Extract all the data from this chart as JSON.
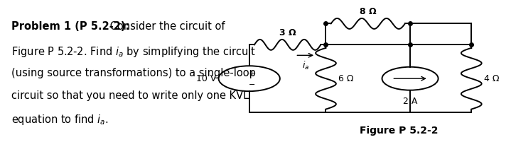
{
  "bg_color": "#ffffff",
  "fig_width": 7.0,
  "fig_height": 1.69,
  "fs_main": 10.5,
  "fs_circuit": 9,
  "lw": 1.4,
  "color": "black",
  "text_lines": [
    {
      "bold_part": "Problem 1 (P 5.2-2):",
      "normal_part": " Consider the circuit of"
    },
    {
      "normal_part": "Figure P 5.2-2. Find $i_a$ by simplifying the circuit"
    },
    {
      "normal_part": "(using source transformations) to a single-loop"
    },
    {
      "normal_part": "circuit so that you need to write only one KVL"
    },
    {
      "normal_part": "equation to find $i_a$."
    }
  ],
  "caption": "Figure P 5.2-2",
  "volt_label": "10 V",
  "r3_label": "3 Ω",
  "r6_label": "6 Ω",
  "r8_label": "8 Ω",
  "r4_label": "4 Ω",
  "cs_label": "2 A",
  "ia_label": "i_a"
}
